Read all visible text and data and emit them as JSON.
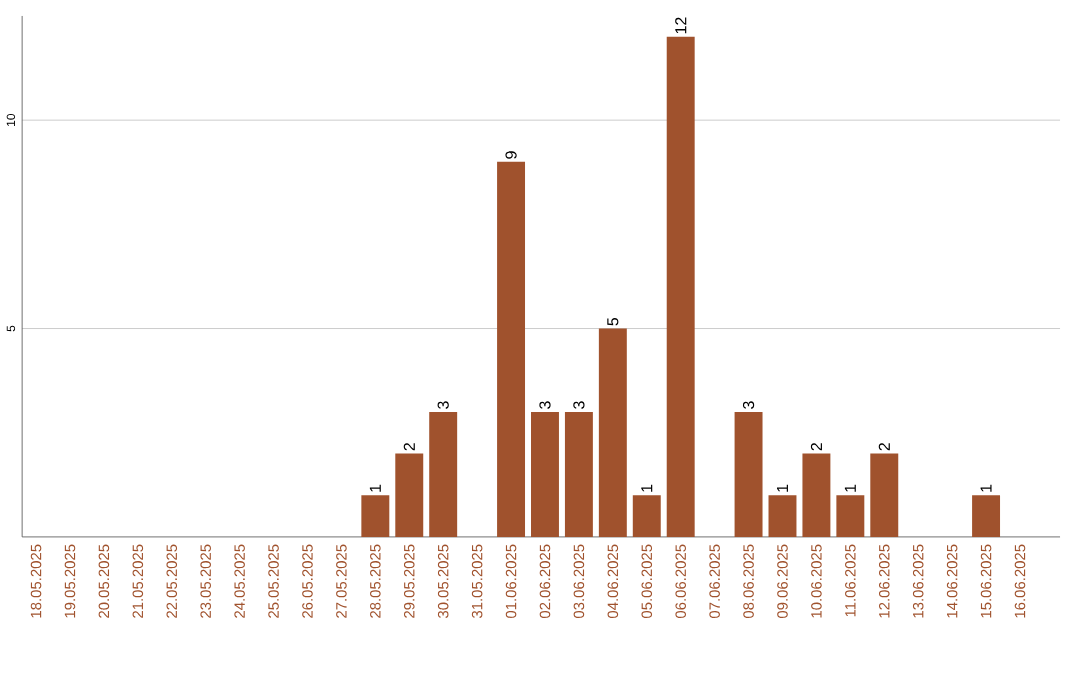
{
  "chart_data": {
    "type": "bar",
    "categories": [
      "18.05.2025",
      "19.05.2025",
      "20.05.2025",
      "21.05.2025",
      "22.05.2025",
      "23.05.2025",
      "24.05.2025",
      "25.05.2025",
      "26.05.2025",
      "27.05.2025",
      "28.05.2025",
      "29.05.2025",
      "30.05.2025",
      "31.05.2025",
      "01.06.2025",
      "02.06.2025",
      "03.06.2025",
      "04.06.2025",
      "05.06.2025",
      "06.06.2025",
      "07.06.2025",
      "08.06.2025",
      "09.06.2025",
      "10.06.2025",
      "11.06.2025",
      "12.06.2025",
      "13.06.2025",
      "14.06.2025",
      "15.06.2025",
      "16.06.2025"
    ],
    "values": [
      0,
      0,
      0,
      0,
      0,
      0,
      0,
      0,
      0,
      0,
      1,
      2,
      3,
      0,
      9,
      3,
      3,
      5,
      1,
      12,
      0,
      3,
      1,
      2,
      1,
      2,
      0,
      0,
      1,
      0
    ],
    "value_labels": [
      null,
      null,
      null,
      null,
      null,
      null,
      null,
      null,
      null,
      null,
      "1",
      "2",
      "3",
      null,
      "9",
      "3",
      "3",
      "5",
      "1",
      "12",
      null,
      "3",
      "1",
      "2",
      "1",
      "2",
      null,
      null,
      "1",
      null
    ],
    "color": "#a0522d",
    "ylim": [
      0,
      12.5
    ],
    "yticks": [
      5,
      10
    ],
    "grid": "y"
  }
}
